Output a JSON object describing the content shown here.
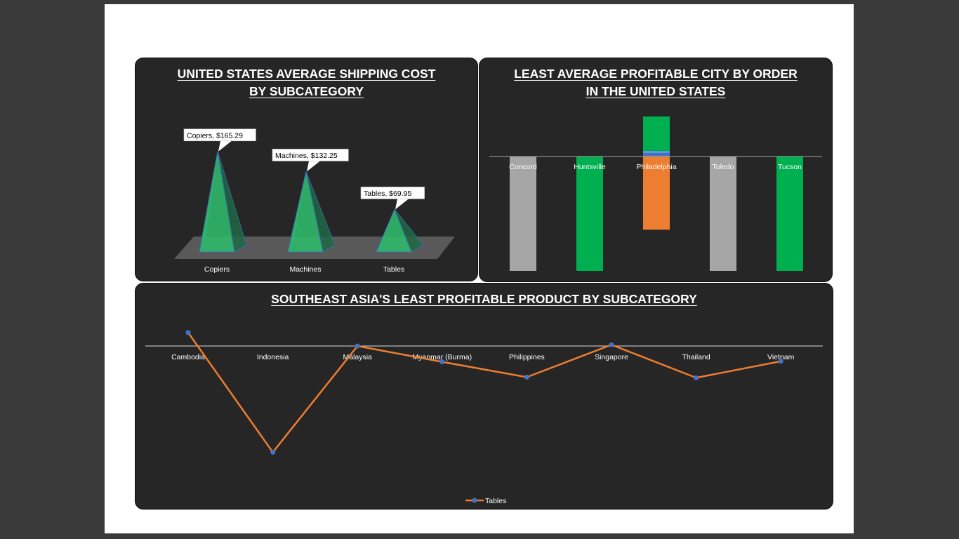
{
  "chart_data": [
    {
      "id": "shipping",
      "type": "bar",
      "style": "3d-pyramid",
      "title": "UNITED STATES AVERAGE SHIPPING COST BY SUBCATEGORY",
      "categories": [
        "Copiers",
        "Machines",
        "Tables"
      ],
      "values": [
        165.29,
        132.25,
        69.95
      ],
      "data_labels": [
        "Copiers, $165.29",
        "Machines, $132.25",
        "Tables, $69.95"
      ],
      "xlabel": "",
      "ylabel": "",
      "ylim": [
        0,
        190
      ],
      "grid": false,
      "color": "#2fb86a"
    },
    {
      "id": "city",
      "type": "bar",
      "style": "stacked",
      "title": "LEAST AVERAGE PROFITABLE CITY BY ORDER IN THE UNITED STATES",
      "categories": [
        "Concord",
        "Huntsville",
        "Philadelphia",
        "Toledo",
        "Tucson"
      ],
      "series": [
        {
          "values": [
            -100,
            0,
            0,
            0,
            0
          ],
          "color": "#a6a6a6"
        },
        {
          "values": [
            0,
            -100,
            0,
            0,
            0
          ],
          "color": "#00b050"
        },
        {
          "values": [
            0,
            0,
            -64,
            0,
            0
          ],
          "color": "#ed7d31"
        },
        {
          "values": [
            0,
            0,
            3,
            0,
            0
          ],
          "color": "#4472c4"
        },
        {
          "values": [
            0,
            0,
            2,
            0,
            0
          ],
          "color": "#5b9bd5"
        },
        {
          "values": [
            0,
            0,
            30,
            0,
            0
          ],
          "color": "#00b050"
        },
        {
          "values": [
            0,
            0,
            0,
            -100,
            0
          ],
          "color": "#a6a6a6"
        },
        {
          "values": [
            0,
            0,
            0,
            0,
            -100
          ],
          "color": "#00b050"
        }
      ],
      "ylim": [
        -100,
        36
      ],
      "grid": false
    },
    {
      "id": "sea",
      "type": "line",
      "title": "SOUTHEAST ASIA'S LEAST PROFITABLE PRODUCT BY SUBCATEGORY",
      "categories": [
        "Cambodia",
        "Indonesia",
        "Malaysia",
        "Myanmar (Burma)",
        "Philippines",
        "Singapore",
        "Thailand",
        "Vietnam"
      ],
      "series": [
        {
          "name": "Tables",
          "values": [
            22,
            -174,
            0,
            -26,
            -51,
            2,
            -52,
            -25
          ],
          "color": "#ed7d31",
          "marker_color": "#4472c4"
        }
      ],
      "ylim": [
        -200,
        40
      ],
      "legend": "bottom",
      "grid": false
    }
  ]
}
